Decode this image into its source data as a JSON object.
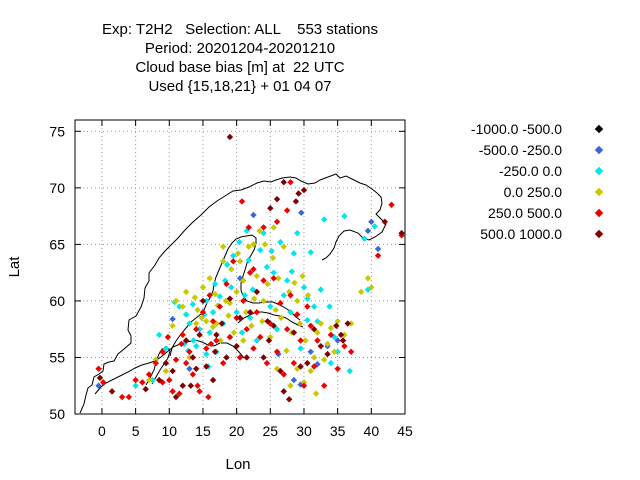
{
  "title_lines": [
    "Exp: T2H2   Selection: ALL    553 stations",
    "Period: 20201204-20201210",
    "Cloud base bias [m] at  22 UTC",
    "Used {15,18,21} + 01 04 07"
  ],
  "chart_data": {
    "type": "scatter",
    "xlabel": "Lon",
    "ylabel": "Lat",
    "xlim": [
      -4,
      45
    ],
    "ylim": [
      50,
      76
    ],
    "xticks": [
      0,
      5,
      10,
      15,
      20,
      25,
      30,
      35,
      40,
      45
    ],
    "yticks": [
      50,
      55,
      60,
      65,
      70,
      75
    ],
    "grid": true,
    "legend_position": "right",
    "series": [
      {
        "name": "-1000.0 -500.0",
        "color": "#000000",
        "points": []
      },
      {
        "name": "-500.0 -250.0",
        "color": "#3a66d8",
        "points": [
          [
            -0.5,
            52.5
          ],
          [
            10.5,
            58.4
          ],
          [
            13,
            54
          ],
          [
            20.5,
            62
          ],
          [
            22.5,
            67.6
          ],
          [
            26.2,
            55.3
          ],
          [
            28.5,
            53
          ],
          [
            29.5,
            52.6
          ],
          [
            29.6,
            67.8
          ],
          [
            31,
            55.5
          ],
          [
            32,
            54.4
          ],
          [
            33.5,
            56
          ],
          [
            35,
            56.5
          ],
          [
            39.5,
            66.2
          ],
          [
            40,
            67
          ],
          [
            41,
            64.6
          ]
        ]
      },
      {
        "name": "-250.0 0.0",
        "color": "#00e5ee",
        "points": [
          [
            5,
            52.5
          ],
          [
            7.5,
            53
          ],
          [
            8.5,
            57
          ],
          [
            9.5,
            55.8
          ],
          [
            10.8,
            59.9
          ],
          [
            11.5,
            59.5
          ],
          [
            12.2,
            56.2
          ],
          [
            12.5,
            58.8
          ],
          [
            13,
            58
          ],
          [
            13.5,
            59.7
          ],
          [
            14,
            56
          ],
          [
            14.5,
            57.5
          ],
          [
            15.2,
            58.8
          ],
          [
            15.5,
            60
          ],
          [
            15.8,
            54.2
          ],
          [
            16,
            57.2
          ],
          [
            16.5,
            59
          ],
          [
            17,
            55.5
          ],
          [
            17.5,
            60.4
          ],
          [
            18,
            58
          ],
          [
            18.3,
            61.8
          ],
          [
            18.6,
            63.2
          ],
          [
            19,
            56.8
          ],
          [
            19.5,
            64
          ],
          [
            20,
            59
          ],
          [
            20.4,
            65.2
          ],
          [
            20.8,
            57.2
          ],
          [
            21.2,
            60.5
          ],
          [
            21.5,
            66.2
          ],
          [
            22,
            58.5
          ],
          [
            22.4,
            61
          ],
          [
            23,
            56.5
          ],
          [
            23.5,
            64.5
          ],
          [
            24,
            66
          ],
          [
            24.5,
            63
          ],
          [
            25,
            59.5
          ],
          [
            25.5,
            62.5
          ],
          [
            26,
            57.5
          ],
          [
            26.5,
            65.2
          ],
          [
            27,
            60.5
          ],
          [
            27.5,
            61.8
          ],
          [
            28,
            59
          ],
          [
            28.5,
            64.2
          ],
          [
            29,
            66
          ],
          [
            29.5,
            55.8
          ],
          [
            30,
            61.2
          ],
          [
            30.5,
            60.2
          ],
          [
            31,
            64.3
          ],
          [
            31.5,
            59.5
          ],
          [
            32,
            58.2
          ],
          [
            32.5,
            61
          ],
          [
            33,
            67.2
          ],
          [
            34,
            54.5
          ],
          [
            34.5,
            56.8
          ],
          [
            35,
            55.5
          ],
          [
            36,
            67.5
          ],
          [
            39,
            65.5
          ],
          [
            39.5,
            61
          ],
          [
            40.5,
            66.6
          ],
          [
            16.8,
            61.5
          ],
          [
            19.2,
            61.2
          ],
          [
            21.8,
            63.6
          ],
          [
            25.2,
            64.4
          ],
          [
            28.2,
            62.6
          ],
          [
            13.6,
            56.5
          ],
          [
            12.8,
            55.6
          ],
          [
            15.5,
            55.3
          ],
          [
            30.5,
            58.3
          ],
          [
            33.8,
            59.5
          ],
          [
            36.8,
            53.8
          ]
        ]
      },
      {
        "name": "0.0 250.0",
        "color": "#c8c800",
        "points": [
          [
            7,
            53
          ],
          [
            8,
            54.8
          ],
          [
            9.5,
            53.8
          ],
          [
            10.5,
            57.8
          ],
          [
            11,
            60
          ],
          [
            12,
            59.5
          ],
          [
            12.5,
            60.8
          ],
          [
            13,
            55
          ],
          [
            13.8,
            60.3
          ],
          [
            14.2,
            59.2
          ],
          [
            14.8,
            58.5
          ],
          [
            15,
            61.2
          ],
          [
            15.5,
            58.2
          ],
          [
            16,
            62
          ],
          [
            16.5,
            57.7
          ],
          [
            16.8,
            60.6
          ],
          [
            17.2,
            59.6
          ],
          [
            17.6,
            56.5
          ],
          [
            18,
            63.5
          ],
          [
            18.4,
            60
          ],
          [
            18.8,
            58.7
          ],
          [
            19.2,
            62.8
          ],
          [
            19.6,
            57.2
          ],
          [
            20,
            60.8
          ],
          [
            20.5,
            63.5
          ],
          [
            21,
            61.8
          ],
          [
            21.4,
            59
          ],
          [
            21.8,
            64.8
          ],
          [
            22.2,
            57.8
          ],
          [
            22.6,
            60.2
          ],
          [
            23,
            62.2
          ],
          [
            23.4,
            66.2
          ],
          [
            23.8,
            58.2
          ],
          [
            24.2,
            65
          ],
          [
            24.6,
            61.5
          ],
          [
            25,
            56.8
          ],
          [
            25.4,
            63.8
          ],
          [
            25.8,
            59.2
          ],
          [
            26.2,
            62
          ],
          [
            26.6,
            58.5
          ],
          [
            27,
            64.8
          ],
          [
            27.4,
            55.6
          ],
          [
            27.8,
            60.8
          ],
          [
            28.2,
            57.2
          ],
          [
            28.6,
            61.6
          ],
          [
            29,
            54
          ],
          [
            29.4,
            58
          ],
          [
            29.8,
            62.2
          ],
          [
            30.2,
            56.5
          ],
          [
            30.6,
            60.5
          ],
          [
            31,
            53.8
          ],
          [
            31.5,
            55
          ],
          [
            32,
            57.2
          ],
          [
            32.5,
            58
          ],
          [
            33,
            54.8
          ],
          [
            33.5,
            56.2
          ],
          [
            34,
            57.6
          ],
          [
            34.5,
            55.5
          ],
          [
            35,
            58.2
          ],
          [
            36,
            57
          ],
          [
            37,
            58
          ],
          [
            39.5,
            62
          ],
          [
            40,
            61.2
          ],
          [
            38.5,
            60.8
          ],
          [
            14,
            58
          ],
          [
            17,
            58
          ],
          [
            19,
            59.8
          ],
          [
            21,
            56.5
          ],
          [
            24,
            60
          ],
          [
            26,
            54
          ],
          [
            28,
            52.5
          ],
          [
            30,
            52.8
          ],
          [
            31.8,
            51.8
          ],
          [
            29,
            60
          ],
          [
            25.5,
            66.5
          ],
          [
            22.5,
            65
          ],
          [
            20.2,
            64.2
          ],
          [
            18,
            64.8
          ]
        ]
      },
      {
        "name": "250.0 500.0",
        "color": "#ee0000",
        "points": [
          [
            -0.5,
            54
          ],
          [
            0.2,
            52.8
          ],
          [
            3,
            51.5
          ],
          [
            4,
            51.5
          ],
          [
            5,
            53
          ],
          [
            6,
            52.8
          ],
          [
            7,
            53.5
          ],
          [
            8,
            54.5
          ],
          [
            9,
            55.5
          ],
          [
            9.8,
            56.8
          ],
          [
            10,
            53
          ],
          [
            10.5,
            52
          ],
          [
            11,
            54.8
          ],
          [
            11.5,
            51.8
          ],
          [
            12,
            57
          ],
          [
            12.5,
            54.5
          ],
          [
            13,
            55.5
          ],
          [
            13.5,
            53.5
          ],
          [
            14,
            57.5
          ],
          [
            14.5,
            52
          ],
          [
            15,
            59
          ],
          [
            15.5,
            55.8
          ],
          [
            16,
            60.5
          ],
          [
            16.5,
            58.2
          ],
          [
            17,
            56.5
          ],
          [
            17.5,
            59.5
          ],
          [
            18,
            54.5
          ],
          [
            18.5,
            61.5
          ],
          [
            19,
            56.8
          ],
          [
            19.5,
            63.5
          ],
          [
            20,
            58.5
          ],
          [
            20.5,
            55
          ],
          [
            21,
            60
          ],
          [
            21.5,
            57.5
          ],
          [
            22,
            62.5
          ],
          [
            22.5,
            55.8
          ],
          [
            23,
            59
          ],
          [
            23.5,
            56.8
          ],
          [
            24,
            61.8
          ],
          [
            24.5,
            54.5
          ],
          [
            25,
            58
          ],
          [
            25.5,
            62
          ],
          [
            26,
            55.5
          ],
          [
            26.5,
            59.8
          ],
          [
            27,
            53.5
          ],
          [
            27.5,
            57.5
          ],
          [
            28,
            60.5
          ],
          [
            28.5,
            54.5
          ],
          [
            29,
            58.8
          ],
          [
            29.5,
            56.5
          ],
          [
            30,
            52.5
          ],
          [
            30.5,
            59.5
          ],
          [
            31,
            57.8
          ],
          [
            31.5,
            54.2
          ],
          [
            32,
            56.5
          ],
          [
            33,
            52.5
          ],
          [
            34,
            57
          ],
          [
            35,
            54
          ],
          [
            36,
            56
          ],
          [
            37,
            55.5
          ],
          [
            41,
            64
          ],
          [
            43,
            68.5
          ],
          [
            44.5,
            65.8
          ],
          [
            28,
            70.5
          ],
          [
            27.5,
            68
          ],
          [
            26,
            67
          ],
          [
            24,
            66.5
          ],
          [
            22.5,
            62.8
          ],
          [
            20.8,
            68.8
          ],
          [
            21.8,
            66.5
          ],
          [
            14.2,
            52.5
          ],
          [
            15.8,
            51.5
          ],
          [
            16.2,
            56.2
          ],
          [
            9,
            52.8
          ],
          [
            11.8,
            56.2
          ]
        ]
      },
      {
        "name": "500.0 1000.0",
        "color": "#800000",
        "points": [
          [
            19,
            74.5
          ],
          [
            -0.3,
            53.2
          ],
          [
            1.5,
            52
          ],
          [
            6.5,
            52.2
          ],
          [
            8.5,
            53
          ],
          [
            9.5,
            54.5
          ],
          [
            10.5,
            53.8
          ],
          [
            11,
            51.5
          ],
          [
            12,
            52.5
          ],
          [
            12.5,
            56.5
          ],
          [
            13.5,
            55
          ],
          [
            14,
            54
          ],
          [
            14.5,
            57
          ],
          [
            15,
            60
          ],
          [
            15.5,
            54.2
          ],
          [
            16.5,
            53
          ],
          [
            17,
            57
          ],
          [
            17.8,
            58
          ],
          [
            18.5,
            55
          ],
          [
            19,
            60.2
          ],
          [
            20,
            56
          ],
          [
            20.5,
            58.5
          ],
          [
            21.5,
            55
          ],
          [
            22,
            59
          ],
          [
            23,
            60.8
          ],
          [
            24,
            55
          ],
          [
            24.8,
            56.5
          ],
          [
            25.5,
            57.8
          ],
          [
            26.5,
            53.8
          ],
          [
            27,
            52
          ],
          [
            27.8,
            51.3
          ],
          [
            28.5,
            57.2
          ],
          [
            29.5,
            54.2
          ],
          [
            30.5,
            54.5
          ],
          [
            31.5,
            57.5
          ],
          [
            32.5,
            56
          ],
          [
            33.5,
            55.3
          ],
          [
            34.8,
            57.8
          ],
          [
            35.5,
            57
          ],
          [
            36.5,
            58
          ],
          [
            35.8,
            56.5
          ],
          [
            26,
            69
          ],
          [
            27,
            70.5
          ],
          [
            28.8,
            68.8
          ],
          [
            30,
            69.8
          ],
          [
            29.2,
            69.5
          ],
          [
            25,
            68.2
          ],
          [
            42,
            67
          ],
          [
            44.5,
            66
          ],
          [
            24.6,
            58.2
          ],
          [
            16.8,
            55.5
          ],
          [
            13.2,
            52.5
          ]
        ]
      }
    ]
  }
}
